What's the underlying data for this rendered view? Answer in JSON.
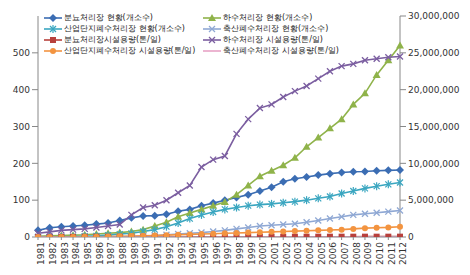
{
  "chart_data": {
    "type": "line",
    "categories": [
      "1981",
      "1982",
      "1983",
      "1984",
      "1985",
      "1986",
      "1987",
      "1988",
      "1989",
      "1990",
      "1991",
      "1992",
      "1993",
      "1994",
      "1995",
      "1996",
      "1997",
      "1998",
      "1999",
      "2000",
      "2001",
      "2002",
      "2003",
      "2004",
      "2005",
      "2006",
      "2007",
      "2008",
      "2009",
      "2010",
      "2011",
      "2012"
    ],
    "ylim": [
      0,
      600
    ],
    "yticks": [
      0,
      100,
      200,
      300,
      400,
      500
    ],
    "y2lim": [
      0,
      30000000
    ],
    "y2ticks": [
      0,
      {
        "value": 5000000,
        "label": "5,000,000"
      },
      {
        "value": 10000000,
        "label": "10,000,000"
      },
      {
        "value": 15000000,
        "label": "15,000,000"
      },
      {
        "value": 20000000,
        "label": "20,000,000"
      },
      {
        "value": 25000000,
        "label": "25,000,000"
      },
      {
        "value": 30000000,
        "label": "30,000,000"
      }
    ],
    "grid": false,
    "legend": "top-left",
    "series": [
      {
        "name": "분뇨처리장 현황(개소수)",
        "color": "#3b6db3",
        "marker": "diamond",
        "values": [
          18,
          25,
          28,
          30,
          32,
          35,
          38,
          45,
          52,
          57,
          58,
          62,
          70,
          75,
          85,
          92,
          100,
          107,
          115,
          125,
          135,
          150,
          158,
          163,
          168,
          172,
          175,
          177,
          178,
          180,
          181,
          182
        ]
      },
      {
        "name": "하수처리장 현황(개소수)",
        "color": "#8fb34a",
        "marker": "triangle",
        "values": [
          2,
          3,
          4,
          5,
          6,
          8,
          10,
          12,
          15,
          20,
          30,
          40,
          55,
          65,
          75,
          85,
          95,
          115,
          140,
          165,
          180,
          195,
          215,
          245,
          270,
          295,
          320,
          360,
          390,
          440,
          480,
          520
        ]
      },
      {
        "name": "산업단지폐수처리장 현황(개소수)",
        "color": "#3aa6c0",
        "marker": "star",
        "values": [
          0,
          0,
          0,
          1,
          2,
          3,
          5,
          8,
          10,
          15,
          20,
          28,
          38,
          50,
          60,
          68,
          75,
          80,
          85,
          88,
          90,
          93,
          96,
          100,
          105,
          110,
          118,
          125,
          132,
          138,
          143,
          148
        ]
      },
      {
        "name": "축산폐수처리장 현황(개소수)",
        "color": "#8fa8d4",
        "marker": "x",
        "values": [
          0,
          0,
          0,
          0,
          0,
          0,
          0,
          0,
          0,
          2,
          4,
          6,
          8,
          10,
          12,
          15,
          18,
          22,
          26,
          30,
          32,
          34,
          36,
          40,
          45,
          50,
          55,
          60,
          63,
          66,
          69,
          72
        ]
      },
      {
        "name": "분뇨처리장시설용량(톤/일)",
        "color": "#b8403c",
        "marker": "square",
        "axis": "y2",
        "values": [
          20000,
          22000,
          24000,
          25000,
          26000,
          27000,
          28000,
          29000,
          30000,
          31000,
          32000,
          33000,
          34000,
          35000,
          36000,
          37000,
          38000,
          39000,
          40000,
          40000,
          41000,
          41000,
          42000,
          42000,
          43000,
          43000,
          44000,
          44000,
          45000,
          45000,
          45000,
          46000
        ]
      },
      {
        "name": "하수처리장 시설용량(톤/일)",
        "color": "#7b5ea0",
        "marker": "x",
        "axis": "y2",
        "values": [
          500000,
          700000,
          900000,
          1000000,
          1100000,
          1300000,
          1500000,
          1700000,
          3000000,
          4000000,
          4300000,
          5000000,
          6000000,
          7000000,
          9500000,
          10500000,
          11000000,
          14000000,
          16000000,
          17500000,
          18000000,
          19000000,
          19800000,
          20500000,
          21500000,
          22500000,
          23200000,
          23500000,
          24000000,
          24200000,
          24400000,
          24500000
        ]
      },
      {
        "name": "산업단지폐수처리장 시설용량(톤/일)",
        "color": "#f39440",
        "marker": "circle",
        "axis": "y2",
        "values": [
          0,
          0,
          0,
          10000,
          20000,
          40000,
          60000,
          90000,
          120000,
          160000,
          200000,
          250000,
          300000,
          350000,
          400000,
          450000,
          500000,
          550000,
          600000,
          650000,
          700000,
          750000,
          800000,
          850000,
          900000,
          950000,
          1000000,
          1100000,
          1200000,
          1250000,
          1300000,
          1400000
        ]
      },
      {
        "name": "축산폐수처리장 시설용량(톤/일)",
        "color": "#e8a2c6",
        "marker": "none",
        "axis": "y2",
        "values": [
          0,
          0,
          0,
          0,
          0,
          0,
          0,
          0,
          0,
          1000,
          2000,
          3000,
          4000,
          5000,
          6000,
          7000,
          8000,
          9000,
          10000,
          11000,
          12000,
          13000,
          14000,
          15000,
          16000,
          17000,
          18000,
          19000,
          20000,
          21000,
          22000,
          23000
        ]
      }
    ]
  }
}
